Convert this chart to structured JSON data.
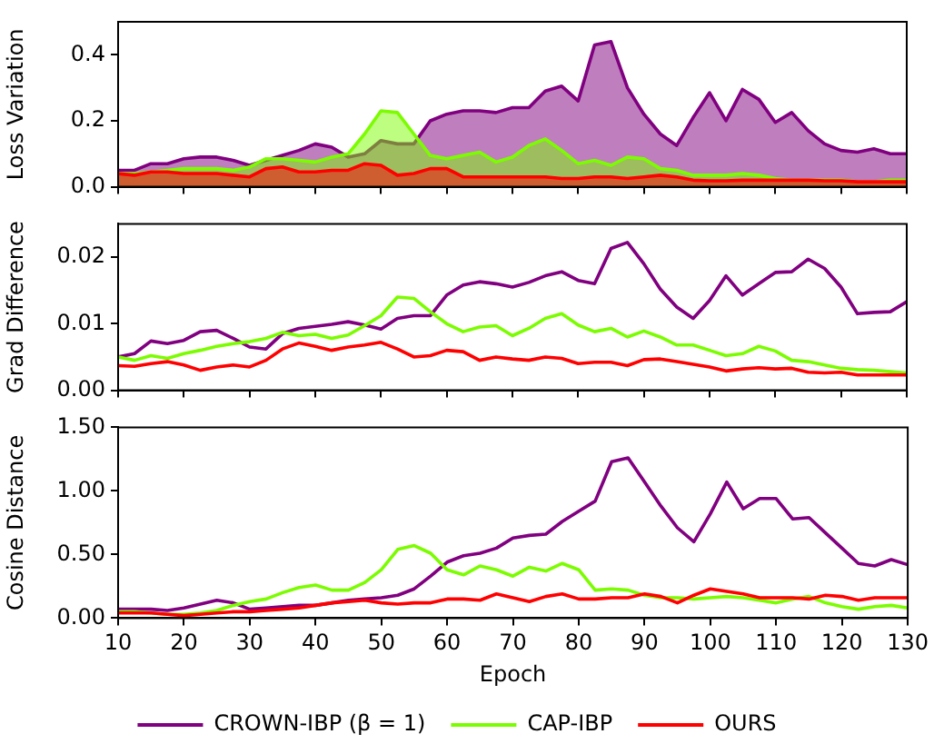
{
  "chart_data": [
    {
      "type": "area",
      "ylabel": "Loss Variation",
      "tick_labels": "y",
      "x": [
        10,
        12.5,
        15,
        17.5,
        20,
        22.5,
        25,
        27.5,
        30,
        32.5,
        35,
        37.5,
        40,
        42.5,
        45,
        47.5,
        50,
        52.5,
        55,
        57.5,
        60,
        62.5,
        65,
        67.5,
        70,
        72.5,
        75,
        77.5,
        80,
        82.5,
        85,
        87.5,
        90,
        92.5,
        95,
        97.5,
        100,
        102.5,
        105,
        107.5,
        110,
        112.5,
        115,
        117.5,
        120,
        122.5,
        125,
        127.5,
        130
      ],
      "xlim": [
        10,
        130
      ],
      "xticks": [
        10,
        20,
        30,
        40,
        50,
        60,
        70,
        80,
        90,
        100,
        110,
        120,
        130
      ],
      "ylim": [
        0,
        0.5
      ],
      "yticks": [
        {
          "value": 0,
          "label": "0.0"
        },
        {
          "value": 0.2,
          "label": "0.2"
        },
        {
          "value": 0.4,
          "label": "0.4"
        }
      ],
      "series": [
        {
          "color": "#800080",
          "values": [
            0.05,
            0.05,
            0.07,
            0.07,
            0.085,
            0.09,
            0.09,
            0.08,
            0.065,
            0.08,
            0.095,
            0.11,
            0.13,
            0.12,
            0.09,
            0.1,
            0.14,
            0.13,
            0.13,
            0.2,
            0.22,
            0.23,
            0.23,
            0.225,
            0.24,
            0.24,
            0.29,
            0.305,
            0.26,
            0.43,
            0.44,
            0.3,
            0.22,
            0.16,
            0.125,
            0.21,
            0.285,
            0.2,
            0.295,
            0.265,
            0.195,
            0.225,
            0.17,
            0.13,
            0.11,
            0.105,
            0.115,
            0.1,
            0.1
          ]
        },
        {
          "color": "#7cfc00",
          "values": [
            0.04,
            0.04,
            0.045,
            0.05,
            0.055,
            0.055,
            0.055,
            0.05,
            0.06,
            0.085,
            0.085,
            0.08,
            0.075,
            0.09,
            0.1,
            0.16,
            0.23,
            0.225,
            0.16,
            0.095,
            0.085,
            0.095,
            0.105,
            0.075,
            0.09,
            0.125,
            0.145,
            0.11,
            0.07,
            0.08,
            0.065,
            0.09,
            0.085,
            0.055,
            0.05,
            0.035,
            0.035,
            0.035,
            0.04,
            0.035,
            0.025,
            0.02,
            0.02,
            0.02,
            0.02,
            0.015,
            0.015,
            0.02,
            0.02
          ]
        },
        {
          "color": "#ff0000",
          "values": [
            0.04,
            0.035,
            0.045,
            0.045,
            0.04,
            0.04,
            0.04,
            0.035,
            0.03,
            0.055,
            0.06,
            0.045,
            0.045,
            0.05,
            0.05,
            0.07,
            0.065,
            0.035,
            0.04,
            0.055,
            0.055,
            0.03,
            0.03,
            0.03,
            0.03,
            0.03,
            0.03,
            0.025,
            0.025,
            0.03,
            0.03,
            0.025,
            0.03,
            0.035,
            0.03,
            0.02,
            0.018,
            0.018,
            0.02,
            0.02,
            0.02,
            0.02,
            0.02,
            0.018,
            0.018,
            0.015,
            0.015,
            0.015,
            0.015
          ]
        }
      ]
    },
    {
      "type": "line",
      "ylabel": "Grad Difference",
      "tick_labels": "y",
      "x": [
        10,
        12.5,
        15,
        17.5,
        20,
        22.5,
        25,
        27.5,
        30,
        32.5,
        35,
        37.5,
        40,
        42.5,
        45,
        47.5,
        50,
        52.5,
        55,
        57.5,
        60,
        62.5,
        65,
        67.5,
        70,
        72.5,
        75,
        77.5,
        80,
        82.5,
        85,
        87.5,
        90,
        92.5,
        95,
        97.5,
        100,
        102.5,
        105,
        107.5,
        110,
        112.5,
        115,
        117.5,
        120,
        122.5,
        125,
        127.5,
        130
      ],
      "xlim": [
        10,
        130
      ],
      "xticks": [
        10,
        20,
        30,
        40,
        50,
        60,
        70,
        80,
        90,
        100,
        110,
        120,
        130
      ],
      "ylim": [
        0,
        0.025
      ],
      "yticks": [
        {
          "value": 0,
          "label": "0.00"
        },
        {
          "value": 0.01,
          "label": "0.01"
        },
        {
          "value": 0.02,
          "label": "0.02"
        }
      ],
      "series": [
        {
          "color": "#800080",
          "values": [
            0.005,
            0.0055,
            0.0074,
            0.007,
            0.0075,
            0.0088,
            0.009,
            0.0078,
            0.0065,
            0.0062,
            0.0085,
            0.0093,
            0.0096,
            0.0099,
            0.0103,
            0.0098,
            0.0092,
            0.0108,
            0.0112,
            0.0112,
            0.0143,
            0.0158,
            0.0163,
            0.016,
            0.0155,
            0.0162,
            0.0172,
            0.0178,
            0.0165,
            0.016,
            0.0213,
            0.0222,
            0.019,
            0.0152,
            0.0125,
            0.0108,
            0.0135,
            0.0172,
            0.0143,
            0.016,
            0.0177,
            0.0178,
            0.0197,
            0.0183,
            0.0155,
            0.0115,
            0.0117,
            0.0118,
            0.0133
          ]
        },
        {
          "color": "#7cfc00",
          "values": [
            0.005,
            0.0045,
            0.0052,
            0.0048,
            0.0055,
            0.006,
            0.0066,
            0.007,
            0.0073,
            0.0078,
            0.0087,
            0.0082,
            0.0084,
            0.0078,
            0.0083,
            0.0097,
            0.0112,
            0.014,
            0.0138,
            0.0118,
            0.01,
            0.0088,
            0.0095,
            0.0097,
            0.0082,
            0.0093,
            0.0108,
            0.0115,
            0.0098,
            0.0088,
            0.0093,
            0.008,
            0.0089,
            0.008,
            0.0068,
            0.0068,
            0.006,
            0.0052,
            0.0055,
            0.0066,
            0.0059,
            0.0045,
            0.0043,
            0.0038,
            0.0033,
            0.0031,
            0.003,
            0.0028,
            0.0026
          ]
        },
        {
          "color": "#ff0000",
          "values": [
            0.0037,
            0.0036,
            0.004,
            0.0043,
            0.0038,
            0.003,
            0.0035,
            0.0038,
            0.0035,
            0.0045,
            0.0062,
            0.0071,
            0.0066,
            0.006,
            0.0065,
            0.0068,
            0.0072,
            0.0062,
            0.005,
            0.0052,
            0.006,
            0.0058,
            0.0045,
            0.005,
            0.0047,
            0.0045,
            0.005,
            0.0048,
            0.004,
            0.0042,
            0.0042,
            0.0037,
            0.0046,
            0.0047,
            0.0043,
            0.0039,
            0.0035,
            0.0029,
            0.0032,
            0.0034,
            0.0032,
            0.0033,
            0.0027,
            0.0026,
            0.0027,
            0.0023,
            0.0023,
            0.0023,
            0.0023
          ]
        }
      ]
    },
    {
      "type": "line",
      "ylabel": "Cosine Distance",
      "xlabel": "Epoch",
      "legend": "bottom",
      "x": [
        10,
        12.5,
        15,
        17.5,
        20,
        22.5,
        25,
        27.5,
        30,
        32.5,
        35,
        37.5,
        40,
        42.5,
        45,
        47.5,
        50,
        52.5,
        55,
        57.5,
        60,
        62.5,
        65,
        67.5,
        70,
        72.5,
        75,
        77.5,
        80,
        82.5,
        85,
        87.5,
        90,
        92.5,
        95,
        97.5,
        100,
        102.5,
        105,
        107.5,
        110,
        112.5,
        115,
        117.5,
        120,
        122.5,
        125,
        127.5,
        130
      ],
      "xlim": [
        10,
        130
      ],
      "xticks": [
        10,
        20,
        30,
        40,
        50,
        60,
        70,
        80,
        90,
        100,
        110,
        120,
        130
      ],
      "ylim": [
        0,
        1.5
      ],
      "yticks": [
        {
          "value": 0,
          "label": "0.00"
        },
        {
          "value": 0.5,
          "label": "0.50"
        },
        {
          "value": 1,
          "label": "1.00"
        },
        {
          "value": 1.5,
          "label": "1.50"
        }
      ],
      "series": [
        {
          "name": "CROWN-IBP (β = 1)",
          "color": "#800080",
          "values": [
            0.07,
            0.07,
            0.07,
            0.06,
            0.08,
            0.11,
            0.14,
            0.12,
            0.07,
            0.08,
            0.09,
            0.1,
            0.1,
            0.12,
            0.14,
            0.15,
            0.16,
            0.18,
            0.23,
            0.33,
            0.44,
            0.49,
            0.51,
            0.55,
            0.63,
            0.65,
            0.66,
            0.76,
            0.84,
            0.92,
            1.23,
            1.26,
            1.07,
            0.88,
            0.71,
            0.6,
            0.82,
            1.07,
            0.86,
            0.94,
            0.94,
            0.78,
            0.79,
            0.67,
            0.55,
            0.43,
            0.41,
            0.46,
            0.42
          ]
        },
        {
          "name": "CAP-IBP",
          "color": "#7cfc00",
          "values": [
            0.05,
            0.05,
            0.04,
            0.03,
            0.03,
            0.04,
            0.06,
            0.1,
            0.13,
            0.15,
            0.2,
            0.24,
            0.26,
            0.22,
            0.22,
            0.28,
            0.38,
            0.54,
            0.57,
            0.51,
            0.38,
            0.34,
            0.41,
            0.38,
            0.33,
            0.4,
            0.37,
            0.43,
            0.38,
            0.22,
            0.23,
            0.22,
            0.18,
            0.16,
            0.16,
            0.15,
            0.16,
            0.17,
            0.16,
            0.14,
            0.12,
            0.15,
            0.17,
            0.12,
            0.09,
            0.07,
            0.09,
            0.1,
            0.08
          ]
        },
        {
          "name": "OURS",
          "color": "#ff0000",
          "values": [
            0.04,
            0.04,
            0.04,
            0.03,
            0.02,
            0.03,
            0.04,
            0.05,
            0.05,
            0.06,
            0.07,
            0.08,
            0.1,
            0.12,
            0.13,
            0.14,
            0.12,
            0.11,
            0.12,
            0.12,
            0.15,
            0.15,
            0.14,
            0.19,
            0.16,
            0.13,
            0.17,
            0.19,
            0.15,
            0.15,
            0.16,
            0.16,
            0.19,
            0.17,
            0.12,
            0.18,
            0.23,
            0.21,
            0.19,
            0.16,
            0.16,
            0.16,
            0.15,
            0.18,
            0.17,
            0.14,
            0.16,
            0.16,
            0.16
          ]
        }
      ]
    }
  ]
}
